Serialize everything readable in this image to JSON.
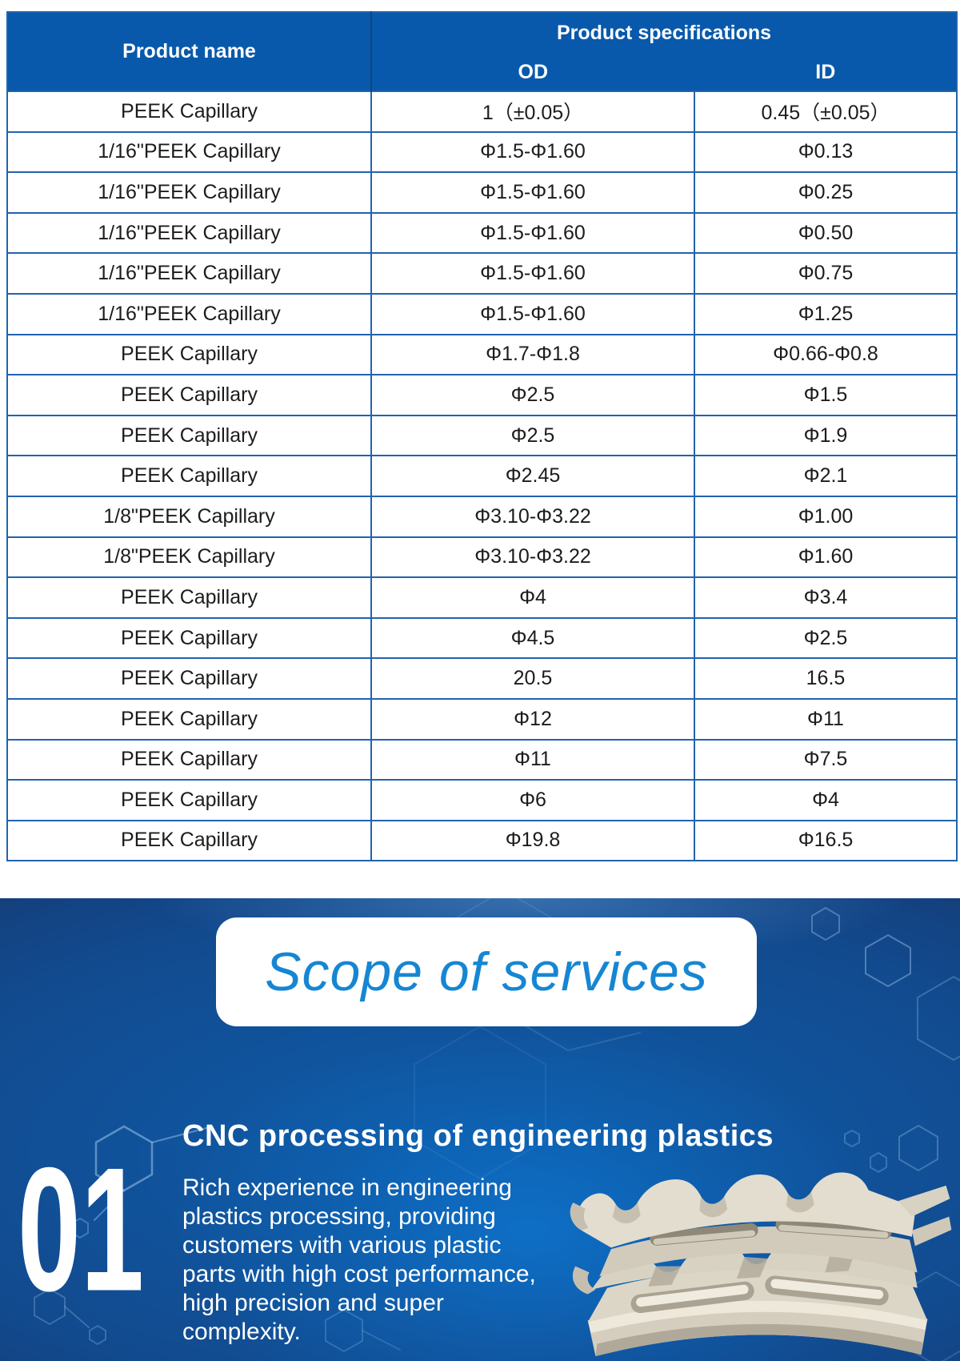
{
  "table": {
    "header": {
      "product_name": "Product name",
      "product_specifications": "Product specifications",
      "od": "OD",
      "id": "ID"
    },
    "rows": [
      [
        "PEEK Capillary",
        "1（±0.05）",
        "0.45（±0.05）"
      ],
      [
        "1/16\"PEEK Capillary",
        "Φ1.5-Φ1.60",
        "Φ0.13"
      ],
      [
        "1/16\"PEEK Capillary",
        "Φ1.5-Φ1.60",
        "Φ0.25"
      ],
      [
        "1/16\"PEEK Capillary",
        "Φ1.5-Φ1.60",
        "Φ0.50"
      ],
      [
        "1/16\"PEEK Capillary",
        "Φ1.5-Φ1.60",
        "Φ0.75"
      ],
      [
        "1/16\"PEEK Capillary",
        "Φ1.5-Φ1.60",
        "Φ1.25"
      ],
      [
        "PEEK Capillary",
        "Φ1.7-Φ1.8",
        "Φ0.66-Φ0.8"
      ],
      [
        "PEEK Capillary",
        "Φ2.5",
        "Φ1.5"
      ],
      [
        "PEEK Capillary",
        "Φ2.5",
        "Φ1.9"
      ],
      [
        "PEEK Capillary",
        "Φ2.45",
        "Φ2.1"
      ],
      [
        "1/8\"PEEK Capillary",
        "Φ3.10-Φ3.22",
        "Φ1.00"
      ],
      [
        "1/8\"PEEK Capillary",
        "Φ3.10-Φ3.22",
        "Φ1.60"
      ],
      [
        "PEEK Capillary",
        "Φ4",
        "Φ3.4"
      ],
      [
        "PEEK Capillary",
        "Φ4.5",
        "Φ2.5"
      ],
      [
        "PEEK Capillary",
        "20.5",
        "16.5"
      ],
      [
        "PEEK Capillary",
        "Φ12",
        "Φ11"
      ],
      [
        "PEEK Capillary",
        "Φ11",
        "Φ7.5"
      ],
      [
        "PEEK Capillary",
        "Φ6",
        "Φ4"
      ],
      [
        "PEEK Capillary",
        "Φ19.8",
        "Φ16.5"
      ]
    ]
  },
  "services": {
    "title": "Scope of services",
    "item_number": "01",
    "item_title": "CNC processing of engineering plastics",
    "item_description": "Rich experience in engineering\nplastics processing, providing\ncustomers with various plastic\nparts with high cost performance,\nhigh precision and super\ncomplexity.",
    "image_label": "CNC machined PEEK plastic part"
  },
  "colors": {
    "table_header_bg": "#0859ab",
    "table_border": "#2263ad",
    "table_text": "#1c1c1c",
    "scope_title_color": "#1686d3",
    "hex_line": "#9cc4ec",
    "part_ivory": "#e3ddcf",
    "part_face": "#d8d2c3",
    "part_mid": "#cfc8b8",
    "part_shadow": "#aaa393",
    "part_deep": "#8f8878"
  }
}
